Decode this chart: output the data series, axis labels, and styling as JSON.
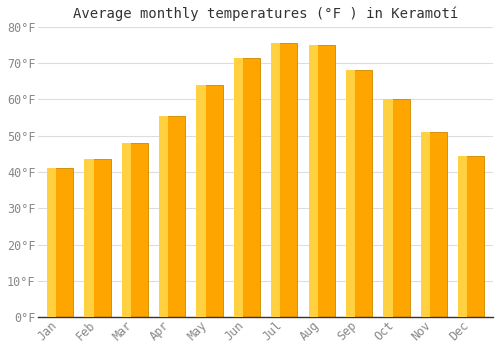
{
  "title": "Average monthly temperatures (°F ) in Keramotí",
  "months": [
    "Jan",
    "Feb",
    "Mar",
    "Apr",
    "May",
    "Jun",
    "Jul",
    "Aug",
    "Sep",
    "Oct",
    "Nov",
    "Dec"
  ],
  "values": [
    41,
    43.5,
    48,
    55.5,
    64,
    71.5,
    75.5,
    75,
    68,
    60,
    51,
    44.5
  ],
  "bar_color_main": "#FFA500",
  "bar_color_left": "#FFD040",
  "bar_edge_color": "#CC8800",
  "background_color": "#FFFFFF",
  "plot_bg_color": "#FFFFFF",
  "grid_color": "#DDDDDD",
  "tick_label_color": "#888888",
  "title_color": "#333333",
  "ylim": [
    0,
    80
  ],
  "yticks": [
    0,
    10,
    20,
    30,
    40,
    50,
    60,
    70,
    80
  ],
  "ytick_labels": [
    "0°F",
    "10°F",
    "20°F",
    "30°F",
    "40°F",
    "50°F",
    "60°F",
    "70°F",
    "80°F"
  ],
  "title_fontsize": 10,
  "tick_fontsize": 8.5,
  "bar_width": 0.7,
  "figsize": [
    5.0,
    3.5
  ],
  "dpi": 100
}
